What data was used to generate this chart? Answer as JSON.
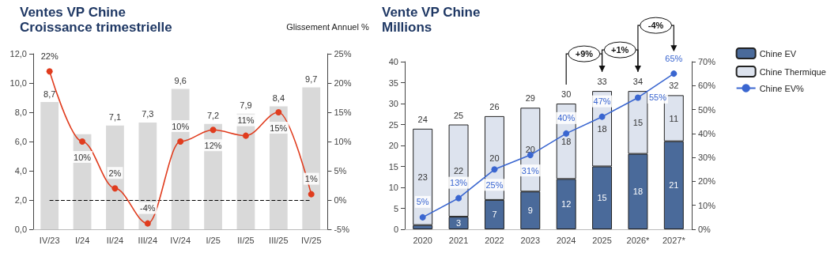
{
  "chart_data": [
    {
      "type": "bar",
      "title": "Ventes VP Chine",
      "subtitle": "Croissance trimestrielle",
      "y2label": "Glissement Annuel %",
      "categories": [
        "IV/23",
        "I/24",
        "II/24",
        "III/24",
        "IV/24",
        "I/25",
        "II/25",
        "III/25",
        "IV/25"
      ],
      "series": [
        {
          "color": "#d9d9d9",
          "values": [
            8.7,
            6.5,
            7.1,
            7.3,
            9.6,
            7.2,
            7.9,
            8.4,
            9.7
          ],
          "value_labels": [
            "8,7",
            null,
            "7,1",
            "7,3",
            "9,6",
            "7,2",
            "7,9",
            "8,4",
            "9,7"
          ]
        },
        {
          "type": "line",
          "axis": "y2",
          "color": "#e03c1e",
          "values": [
            22,
            10,
            2,
            -4,
            10,
            12,
            11,
            15,
            1
          ],
          "value_labels": [
            "22%",
            "10%",
            "2%",
            "-4%",
            "10%",
            "12%",
            "11%",
            "15%",
            "1%"
          ]
        }
      ],
      "ylim": [
        0,
        12
      ],
      "yticks": [
        {
          "value": 0,
          "label": "0,0"
        },
        {
          "value": 2,
          "label": "2,0"
        },
        {
          "value": 4,
          "label": "4,0"
        },
        {
          "value": 6,
          "label": "6,0"
        },
        {
          "value": 8,
          "label": "8,0"
        },
        {
          "value": 10,
          "label": "10,0"
        },
        {
          "value": 12,
          "label": "12,0"
        }
      ],
      "y2lim": [
        -5,
        25
      ],
      "y2ticks": [
        {
          "value": -5,
          "label": "-5%"
        },
        {
          "value": 0,
          "label": "0%"
        },
        {
          "value": 5,
          "label": "5%"
        },
        {
          "value": 10,
          "label": "10%"
        },
        {
          "value": 15,
          "label": "15%"
        },
        {
          "value": 20,
          "label": "20%"
        },
        {
          "value": 25,
          "label": "25%"
        }
      ],
      "ref_lines": [
        {
          "axis": "y2",
          "value": 0,
          "color": "#000000",
          "line_style": "dashed"
        }
      ],
      "marker": "circle",
      "grid": false,
      "legend": false
    },
    {
      "type": "bar",
      "title": "Vente VP Chine",
      "subtitle": "Millions",
      "stacked": true,
      "categories": [
        "2020",
        "2021",
        "2022",
        "2023",
        "2024",
        "2025",
        "2026*",
        "2027*"
      ],
      "series": [
        {
          "name": "Chine EV",
          "color": "#4a6a9a",
          "values": [
            1,
            3,
            7,
            9,
            12,
            15,
            18,
            21
          ],
          "value_labels": [
            null,
            "3",
            "7",
            "9",
            "12",
            "15",
            "18",
            "21"
          ]
        },
        {
          "name": "Chine Thermique",
          "color": "#dde3ee",
          "values": [
            23,
            22,
            20,
            20,
            18,
            18,
            15,
            11
          ],
          "value_labels": [
            "23",
            "22",
            "20",
            "20",
            "18",
            "18",
            "15",
            "11"
          ]
        },
        {
          "type": "line",
          "name": "Chine EV%",
          "axis": "y2",
          "color": "#3a66d0",
          "values": [
            5,
            13,
            25,
            31,
            40,
            47,
            55,
            65
          ],
          "value_labels": [
            "5%",
            "13%",
            "25%",
            "31%",
            "40%",
            "47%",
            "55%",
            "65%"
          ]
        }
      ],
      "totals": [
        "24",
        "25",
        "26",
        "29",
        "30",
        "33",
        "34",
        "32"
      ],
      "ylim": [
        0,
        40
      ],
      "yticks": [
        0,
        5,
        10,
        15,
        20,
        25,
        30,
        35,
        40
      ],
      "y2lim": [
        0,
        70
      ],
      "y2ticks": [
        {
          "value": 0,
          "label": "0%"
        },
        {
          "value": 10,
          "label": "10%"
        },
        {
          "value": 20,
          "label": "20%"
        },
        {
          "value": 30,
          "label": "30%"
        },
        {
          "value": 40,
          "label": "40%"
        },
        {
          "value": 50,
          "label": "50%"
        },
        {
          "value": 60,
          "label": "60%"
        },
        {
          "value": 70,
          "label": "70%"
        }
      ],
      "annotations": [
        "+9%",
        "+1%",
        "-4%"
      ],
      "marker": "circle",
      "grid": false,
      "legend": "right"
    }
  ]
}
